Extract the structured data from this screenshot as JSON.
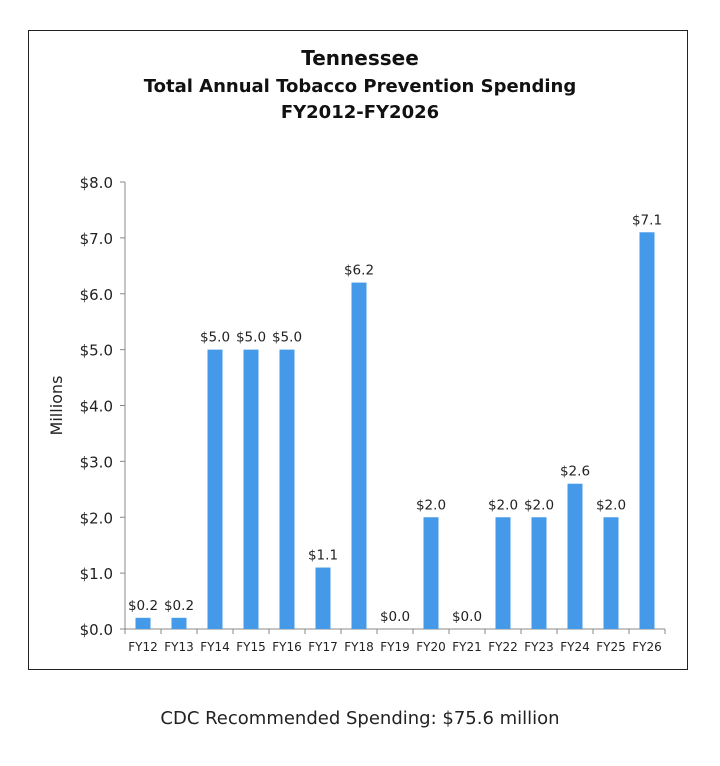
{
  "chart_data": {
    "type": "bar",
    "title": "Tennessee",
    "subtitle": [
      "Total Annual Tobacco Prevention Spending",
      "FY2012-FY2026"
    ],
    "categories": [
      "FY12",
      "FY13",
      "FY14",
      "FY15",
      "FY16",
      "FY17",
      "FY18",
      "FY19",
      "FY20",
      "FY21",
      "FY22",
      "FY23",
      "FY24",
      "FY25",
      "FY26"
    ],
    "values": [
      0.2,
      0.2,
      5.0,
      5.0,
      5.0,
      1.1,
      6.2,
      0.0,
      2.0,
      0.0,
      2.0,
      2.0,
      2.6,
      2.0,
      7.1
    ],
    "data_labels": [
      "$0.2",
      "$0.2",
      "$5.0",
      "$5.0",
      "$5.0",
      "$1.1",
      "$6.2",
      "$0.0",
      "$2.0",
      "$0.0",
      "$2.0",
      "$2.0",
      "$2.6",
      "$2.0",
      "$7.1"
    ],
    "xlabel": "",
    "ylabel": "Millions",
    "ylim": [
      0,
      8
    ],
    "yticks": [
      "$0.0",
      "$1.0",
      "$2.0",
      "$3.0",
      "$4.0",
      "$5.0",
      "$6.0",
      "$7.0",
      "$8.0"
    ],
    "grid": false,
    "bar_color": "#4499E9"
  },
  "footer": "CDC Recommended Spending: $75.6 million"
}
